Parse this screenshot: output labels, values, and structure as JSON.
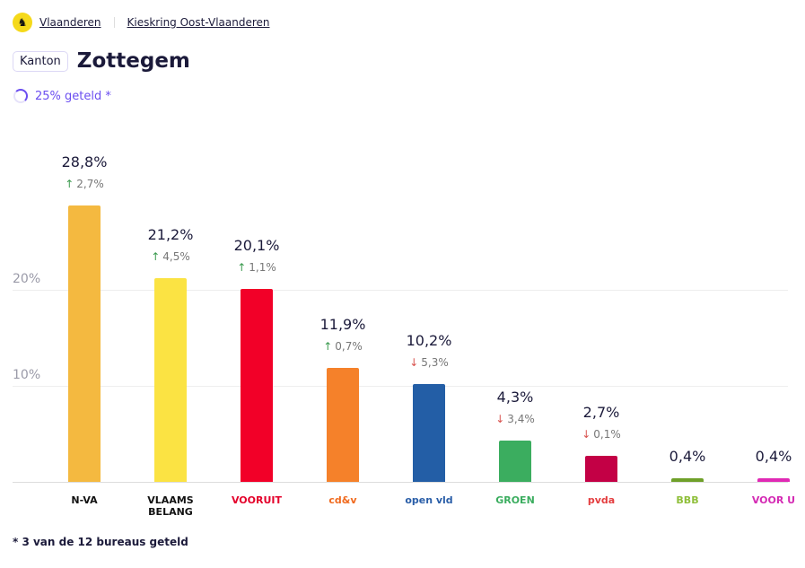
{
  "breadcrumb": {
    "items": [
      "Vlaanderen",
      "Kieskring Oost-Vlaanderen"
    ],
    "logo_icon": "flemish-lion-icon"
  },
  "header": {
    "badge": "Kanton",
    "title": "Zottegem"
  },
  "progress": {
    "label": "25% geteld *",
    "percent": 25
  },
  "footnote": "* 3 van de 12 bureaus geteld",
  "chart_data": {
    "type": "bar",
    "ylim": [
      0,
      30
    ],
    "yticks": [
      "10%",
      "20%"
    ],
    "grid": true,
    "categories": [
      "N-VA",
      "Vlaams Belang",
      "Vooruit",
      "cd&v",
      "Open Vld",
      "Groen",
      "PVDA",
      "BBB",
      "Voor U"
    ],
    "logos": [
      "N-VA",
      "VLAAMS BELANG",
      "VOORUIT",
      "cd&v",
      "open vld",
      "GROEN",
      "pvda",
      "BBB",
      "VOOR U"
    ],
    "values": [
      28.8,
      21.2,
      20.1,
      11.9,
      10.2,
      4.3,
      2.7,
      0.4,
      0.4
    ],
    "value_labels": [
      "28,8%",
      "21,2%",
      "20,1%",
      "11,9%",
      "10,2%",
      "4,3%",
      "2,7%",
      "0,4%",
      "0,4%"
    ],
    "changes": [
      "2,7%",
      "4,5%",
      "1,1%",
      "0,7%",
      "5,3%",
      "3,4%",
      "0,1%",
      null,
      null
    ],
    "change_direction": [
      "up",
      "up",
      "up",
      "up",
      "down",
      "down",
      "down",
      null,
      null
    ],
    "colors": [
      "#f4b940",
      "#fbe343",
      "#f20028",
      "#f5812a",
      "#235ea6",
      "#3bad5f",
      "#c30045",
      "#6fa02a",
      "#e02ab5"
    ],
    "logo_colors": [
      "#111",
      "#111",
      "#e4002b",
      "#f06a1e",
      "#2a5ea8",
      "#3bad5f",
      "#e43d3f",
      "#8fbf3a",
      "#d42bb4"
    ],
    "up_color": "#3a9a4e",
    "down_color": "#d9534f"
  }
}
